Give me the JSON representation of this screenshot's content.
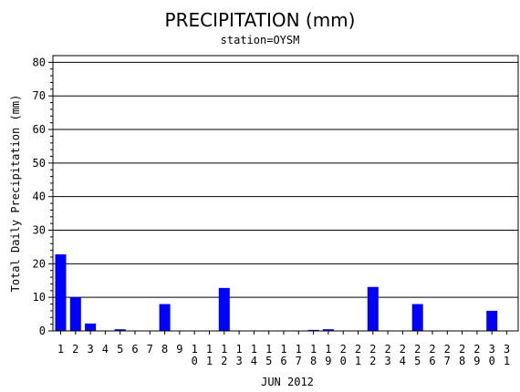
{
  "chart_data": {
    "type": "bar",
    "title": "PRECIPITATION (mm)",
    "subtitle": "station=OYSM",
    "xlabel": "JUN 2012",
    "ylabel": "Total Daily Precipitation (mm)",
    "ylim": [
      0,
      82
    ],
    "yticks": [
      0,
      10,
      20,
      30,
      40,
      50,
      60,
      70,
      80
    ],
    "grid": true,
    "bar_color": "#0000ff",
    "categories": [
      "1",
      "2",
      "3",
      "4",
      "5",
      "6",
      "7",
      "8",
      "9",
      "10",
      "11",
      "12",
      "13",
      "14",
      "15",
      "16",
      "17",
      "18",
      "19",
      "20",
      "21",
      "22",
      "23",
      "24",
      "25",
      "26",
      "27",
      "28",
      "29",
      "30",
      "31"
    ],
    "values": [
      22.8,
      10.0,
      2.2,
      0,
      0.5,
      0,
      0,
      8.0,
      0,
      0,
      0,
      12.8,
      0,
      0,
      0,
      0,
      0,
      0.3,
      0.5,
      0,
      0,
      13.1,
      0,
      0,
      8.0,
      0,
      0,
      0,
      0,
      6.0,
      null
    ]
  }
}
